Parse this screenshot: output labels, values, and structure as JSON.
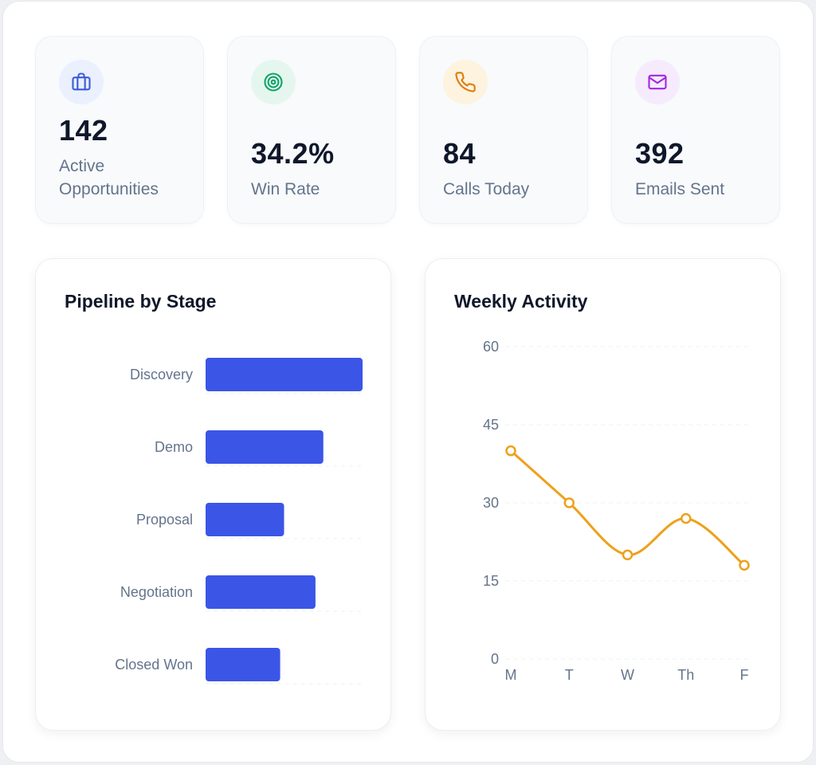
{
  "stats": [
    {
      "value": "142",
      "label": "Active Opportunities",
      "icon": "briefcase-icon",
      "icon_color": "#3b5bdb",
      "icon_bg": "#eaf0fe"
    },
    {
      "value": "34.2%",
      "label": "Win Rate",
      "icon": "target-icon",
      "icon_color": "#10a36a",
      "icon_bg": "#e5f6ee"
    },
    {
      "value": "84",
      "label": "Calls Today",
      "icon": "phone-icon",
      "icon_color": "#e07b0c",
      "icon_bg": "#fdf3df"
    },
    {
      "value": "392",
      "label": "Emails Sent",
      "icon": "mail-icon",
      "icon_color": "#a327e0",
      "icon_bg": "#f6ebfd"
    }
  ],
  "pipeline": {
    "title": "Pipeline by Stage"
  },
  "activity": {
    "title": "Weekly Activity"
  },
  "chart_data": [
    {
      "type": "bar",
      "orientation": "horizontal",
      "title": "Pipeline by Stage",
      "categories": [
        "Discovery",
        "Demo",
        "Proposal",
        "Negotiation",
        "Closed Won"
      ],
      "values": [
        40,
        30,
        20,
        28,
        19
      ],
      "color": "#3b55e6",
      "grid": true
    },
    {
      "type": "line",
      "title": "Weekly Activity",
      "x": [
        "M",
        "T",
        "W",
        "Th",
        "F"
      ],
      "y": [
        40,
        30,
        20,
        27,
        18
      ],
      "yticks": [
        0,
        15,
        30,
        45,
        60
      ],
      "ylim": [
        0,
        60
      ],
      "color": "#eda11a",
      "grid": true
    }
  ]
}
